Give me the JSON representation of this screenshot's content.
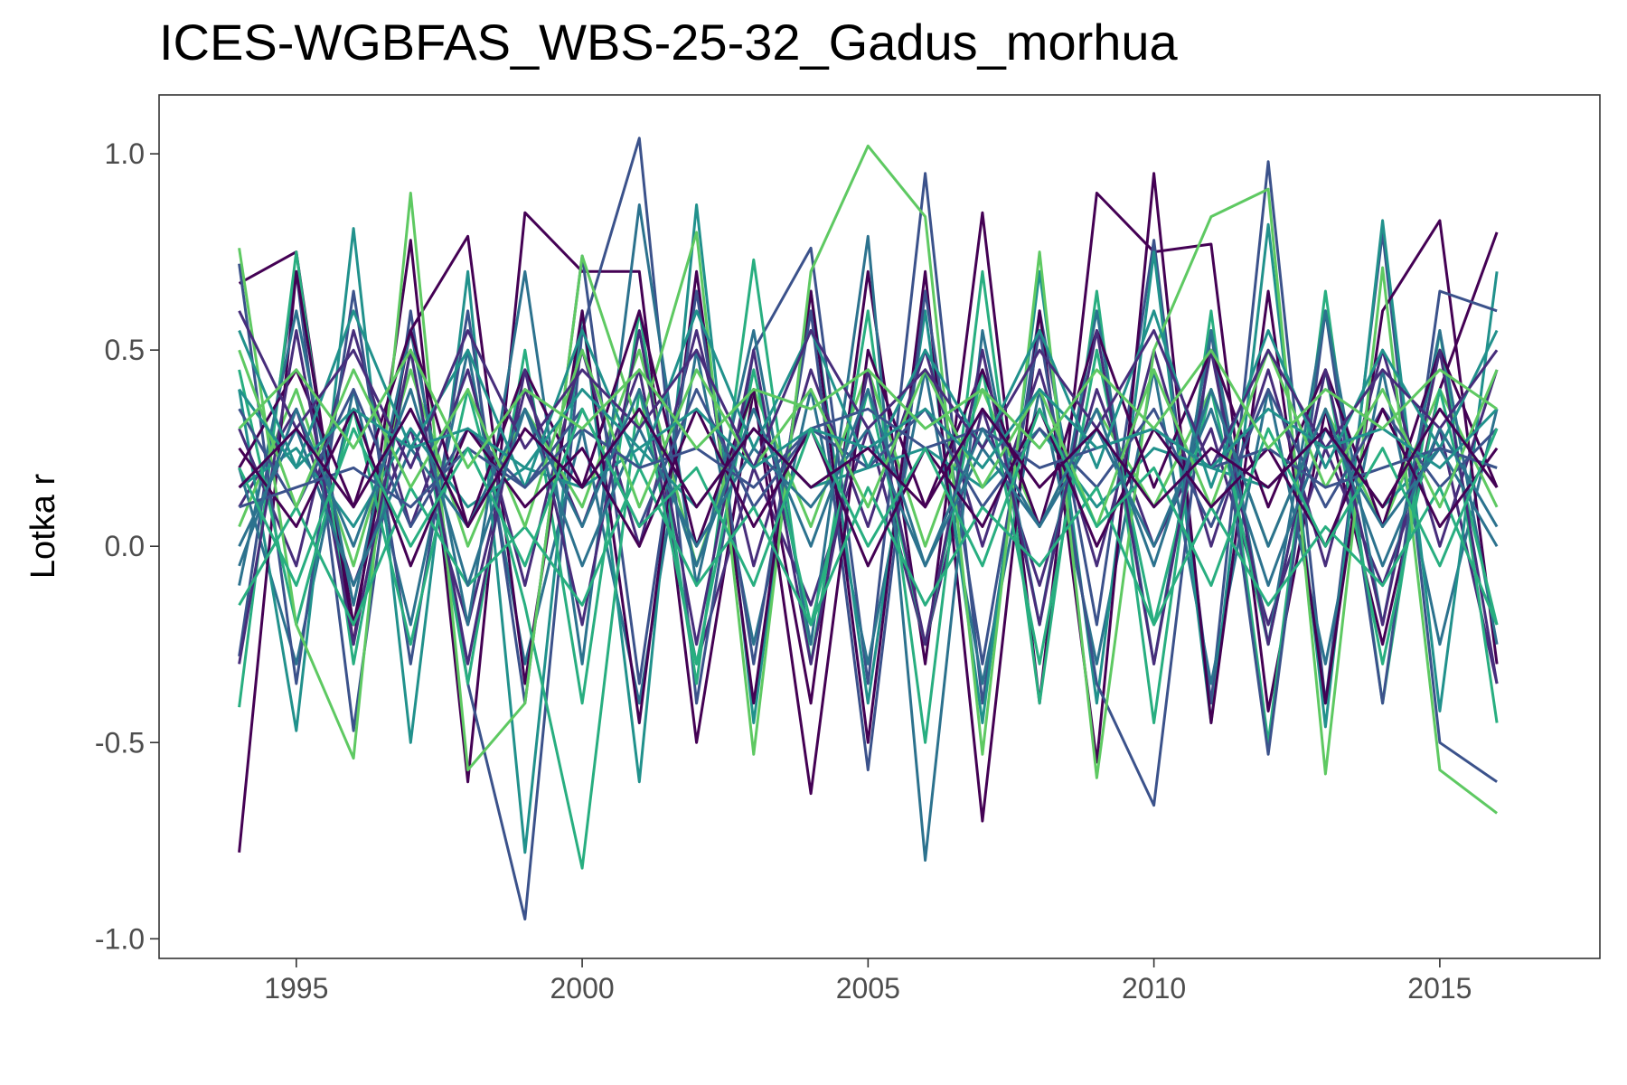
{
  "chart_data": {
    "type": "line",
    "title": "ICES-WGBFAS_WBS-25-32_Gadus_morhua",
    "xlabel": "",
    "ylabel": "Lotka r",
    "xlim": [
      1992.6,
      2017.8
    ],
    "ylim": [
      -1.05,
      1.15
    ],
    "x_ticks": [
      1995,
      2000,
      2005,
      2010,
      2015
    ],
    "y_ticks": [
      -1.0,
      -0.5,
      0.0,
      0.5,
      1.0
    ],
    "y_tick_labels": [
      "-1.0",
      "-0.5",
      "0.0",
      "0.5",
      "1.0"
    ],
    "grid": false,
    "legend": "none",
    "x": [
      1994,
      1995,
      1996,
      1997,
      1998,
      1999,
      2000,
      2001,
      2002,
      2003,
      2004,
      2005,
      2006,
      2007,
      2008,
      2009,
      2010,
      2011,
      2012,
      2013,
      2014,
      2015,
      2016
    ],
    "colors": [
      "#440154",
      "#472d7b",
      "#3b528b",
      "#2c728e",
      "#21918c",
      "#28ae80",
      "#5ec962"
    ],
    "series": [
      {
        "values": [
          0.67,
          0.75,
          -0.25,
          0.78,
          -0.6,
          0.85,
          0.7,
          0.7,
          -0.5,
          0.4,
          -0.4,
          0.7,
          -0.3,
          0.85,
          -0.4,
          0.9,
          0.75,
          0.77,
          -0.42,
          0.35,
          -0.25,
          0.4,
          0.8
        ]
      },
      {
        "values": [
          0.1,
          0.35,
          -0.1,
          0.3,
          -0.2,
          0.4,
          0.05,
          0.45,
          -0.3,
          0.2,
          -0.15,
          0.3,
          -0.25,
          0.35,
          -0.1,
          0.4,
          0.0,
          0.3,
          -0.2,
          0.25,
          -0.1,
          0.3,
          -0.35
        ]
      },
      {
        "values": [
          -0.28,
          0.7,
          -0.47,
          0.6,
          -0.35,
          -0.95,
          0.55,
          1.04,
          -0.4,
          0.5,
          0.76,
          -0.35,
          0.95,
          -0.4,
          0.6,
          -0.2,
          0.78,
          -0.4,
          0.98,
          -0.4,
          0.8,
          -0.5,
          -0.6
        ]
      },
      {
        "values": [
          0.2,
          -0.3,
          0.4,
          -0.2,
          0.5,
          -0.3,
          0.3,
          -0.4,
          0.5,
          -0.25,
          0.4,
          -0.3,
          0.45,
          -0.35,
          0.4,
          -0.3,
          0.45,
          -0.35,
          0.4,
          -0.3,
          0.45,
          -0.25,
          0.35
        ]
      },
      {
        "values": [
          0.4,
          -0.47,
          0.81,
          -0.5,
          0.7,
          -0.78,
          0.6,
          -0.6,
          0.87,
          -0.45,
          0.65,
          -0.4,
          0.6,
          -0.45,
          0.7,
          -0.4,
          0.75,
          -0.45,
          0.82,
          -0.46,
          0.83,
          -0.42,
          0.7
        ]
      },
      {
        "values": [
          -0.41,
          0.75,
          -0.3,
          0.5,
          -0.35,
          0.5,
          -0.4,
          0.6,
          -0.35,
          0.73,
          -0.3,
          0.6,
          -0.5,
          0.7,
          -0.4,
          0.65,
          -0.45,
          0.6,
          -0.5,
          0.65,
          -0.4,
          0.55,
          -0.45
        ]
      },
      {
        "values": [
          0.05,
          0.4,
          -0.05,
          0.45,
          0.0,
          0.35,
          0.1,
          0.5,
          -0.05,
          0.4,
          0.05,
          0.45,
          0.0,
          0.4,
          0.05,
          0.35,
          0.1,
          0.4,
          0.0,
          0.35,
          0.05,
          0.4,
          0.1
        ]
      },
      {
        "values": [
          -0.78,
          0.7,
          -0.2,
          0.55,
          0.79,
          -0.35,
          0.6,
          -0.45,
          0.7,
          -0.4,
          0.65,
          -0.5,
          0.7,
          -0.7,
          0.6,
          -0.55,
          0.95,
          -0.45,
          0.65,
          -0.4,
          0.6,
          0.83,
          -0.3
        ]
      },
      {
        "values": [
          0.3,
          -0.05,
          0.55,
          0.05,
          0.45,
          -0.1,
          0.5,
          0.0,
          0.55,
          -0.05,
          0.45,
          0.05,
          0.5,
          0.0,
          0.45,
          -0.05,
          0.5,
          0.0,
          0.45,
          -0.05,
          0.5,
          0.0,
          0.45
        ]
      },
      {
        "values": [
          0.72,
          -0.35,
          0.65,
          -0.3,
          0.6,
          -0.4,
          0.74,
          -0.35,
          0.65,
          -0.3,
          0.6,
          -0.57,
          0.65,
          -0.3,
          0.55,
          -0.35,
          -0.66,
          0.55,
          -0.53,
          0.6,
          -0.4,
          0.65,
          0.6
        ]
      },
      {
        "values": [
          -0.1,
          0.6,
          -0.15,
          0.55,
          -0.2,
          0.7,
          -0.3,
          0.87,
          -0.1,
          0.55,
          -0.25,
          0.79,
          -0.8,
          0.55,
          -0.2,
          0.6,
          -0.3,
          0.55,
          -0.25,
          0.6,
          -0.2,
          0.55,
          -0.25
        ]
      },
      {
        "values": [
          0.15,
          0.25,
          0.05,
          0.3,
          0.1,
          0.2,
          0.15,
          0.25,
          0.1,
          0.3,
          0.15,
          0.2,
          0.25,
          0.15,
          0.3,
          0.1,
          0.25,
          0.2,
          0.15,
          0.3,
          0.1,
          0.25,
          0.2
        ]
      },
      {
        "values": [
          0.45,
          -0.2,
          0.35,
          -0.25,
          0.4,
          -0.15,
          -0.82,
          0.4,
          -0.3,
          0.45,
          -0.2,
          0.4,
          -0.25,
          0.45,
          -0.3,
          0.5,
          -0.2,
          0.4,
          -0.25,
          0.45,
          -0.3,
          0.4,
          -0.2
        ]
      },
      {
        "values": [
          0.76,
          -0.2,
          -0.54,
          0.9,
          -0.57,
          -0.4,
          0.74,
          0.3,
          0.8,
          -0.53,
          0.7,
          1.02,
          0.84,
          -0.53,
          0.75,
          -0.59,
          0.5,
          0.84,
          0.91,
          -0.58,
          0.71,
          -0.57,
          -0.68
        ]
      },
      {
        "values": [
          0.2,
          0.45,
          0.1,
          0.55,
          0.05,
          0.45,
          0.15,
          0.6,
          0.0,
          0.4,
          -0.63,
          0.5,
          0.1,
          0.45,
          0.05,
          0.55,
          0.15,
          0.5,
          0.1,
          0.45,
          0.05,
          0.5,
          0.15
        ]
      },
      {
        "values": [
          -0.3,
          0.55,
          -0.25,
          0.5,
          -0.3,
          0.45,
          -0.2,
          0.55,
          -0.25,
          0.5,
          -0.3,
          0.45,
          -0.25,
          0.5,
          -0.2,
          0.55,
          -0.3,
          0.5,
          -0.25,
          0.45,
          -0.2,
          0.5,
          -0.35
        ]
      },
      {
        "values": [
          0.35,
          0.1,
          0.4,
          0.05,
          0.3,
          0.15,
          0.35,
          0.05,
          0.4,
          0.1,
          0.3,
          0.2,
          0.35,
          0.1,
          0.3,
          0.15,
          0.35,
          0.05,
          0.4,
          0.1,
          0.35,
          0.15,
          0.3
        ]
      },
      {
        "values": [
          0.0,
          0.3,
          -0.1,
          0.25,
          0.05,
          0.35,
          -0.05,
          0.3,
          0.0,
          0.25,
          0.1,
          0.3,
          -0.05,
          0.25,
          0.05,
          0.3,
          0.0,
          0.35,
          -0.1,
          0.3,
          0.05,
          0.25,
          0.0
        ]
      },
      {
        "values": [
          0.55,
          0.2,
          0.6,
          0.25,
          0.5,
          0.15,
          0.55,
          0.2,
          0.6,
          0.25,
          0.55,
          0.2,
          0.5,
          0.25,
          0.55,
          0.2,
          0.6,
          0.15,
          0.55,
          0.2,
          0.5,
          0.25,
          0.55
        ]
      },
      {
        "values": [
          -0.15,
          0.1,
          -0.2,
          0.15,
          -0.1,
          0.05,
          -0.15,
          0.2,
          -0.1,
          0.1,
          -0.2,
          0.15,
          -0.15,
          0.1,
          -0.05,
          0.15,
          -0.2,
          0.1,
          -0.15,
          0.05,
          -0.1,
          0.15,
          -0.2
        ]
      },
      {
        "values": [
          0.5,
          0.1,
          0.45,
          0.15,
          0.4,
          0.05,
          0.5,
          0.1,
          0.45,
          0.2,
          0.4,
          0.1,
          0.45,
          0.15,
          0.4,
          0.05,
          0.45,
          0.1,
          0.5,
          0.15,
          0.4,
          0.1,
          0.45
        ]
      },
      {
        "values": [
          0.25,
          0.05,
          0.35,
          -0.05,
          0.3,
          0.1,
          0.25,
          0.0,
          0.35,
          0.05,
          0.3,
          -0.05,
          0.25,
          0.05,
          0.35,
          0.0,
          0.3,
          0.1,
          0.25,
          0.0,
          0.35,
          0.05,
          0.25
        ]
      },
      {
        "values": [
          0.6,
          0.3,
          0.5,
          0.2,
          0.55,
          0.25,
          0.45,
          0.3,
          0.5,
          0.2,
          0.55,
          0.3,
          0.45,
          0.25,
          0.5,
          0.3,
          0.55,
          0.2,
          0.5,
          0.25,
          0.45,
          0.3,
          0.5
        ]
      },
      {
        "values": [
          0.1,
          0.15,
          0.2,
          0.1,
          0.25,
          0.15,
          0.3,
          0.2,
          0.25,
          0.15,
          0.3,
          0.35,
          0.25,
          0.3,
          0.2,
          0.25,
          0.3,
          0.2,
          0.25,
          0.15,
          0.2,
          0.25,
          0.2
        ]
      },
      {
        "values": [
          -0.05,
          0.35,
          0.0,
          0.4,
          -0.1,
          0.35,
          0.05,
          0.4,
          -0.05,
          0.35,
          0.0,
          0.4,
          -0.05,
          0.3,
          0.05,
          0.35,
          -0.05,
          0.4,
          0.0,
          0.35,
          -0.05,
          0.3,
          0.05
        ]
      },
      {
        "values": [
          0.4,
          0.2,
          0.35,
          0.25,
          0.3,
          0.2,
          0.4,
          0.25,
          0.35,
          0.2,
          0.3,
          0.25,
          0.35,
          0.2,
          0.4,
          0.25,
          0.3,
          0.2,
          0.35,
          0.25,
          0.3,
          0.2,
          0.35
        ]
      },
      {
        "values": [
          0.2,
          -0.1,
          0.3,
          0.0,
          0.25,
          -0.05,
          0.35,
          0.05,
          0.2,
          -0.1,
          0.3,
          0.0,
          0.25,
          -0.05,
          0.35,
          0.05,
          0.2,
          -0.1,
          0.3,
          0.0,
          0.25,
          -0.05,
          0.3
        ]
      },
      {
        "values": [
          0.3,
          0.45,
          0.25,
          0.5,
          0.2,
          0.4,
          0.3,
          0.45,
          0.25,
          0.4,
          0.35,
          0.45,
          0.3,
          0.4,
          0.25,
          0.45,
          0.3,
          0.5,
          0.25,
          0.4,
          0.3,
          0.45,
          0.35
        ]
      },
      {
        "values": [
          0.15,
          0.3,
          0.1,
          0.35,
          0.05,
          0.3,
          0.15,
          0.35,
          0.1,
          0.3,
          0.15,
          0.25,
          0.1,
          0.35,
          0.15,
          0.3,
          0.1,
          0.25,
          0.15,
          0.3,
          0.1,
          0.35,
          0.15
        ]
      }
    ]
  }
}
